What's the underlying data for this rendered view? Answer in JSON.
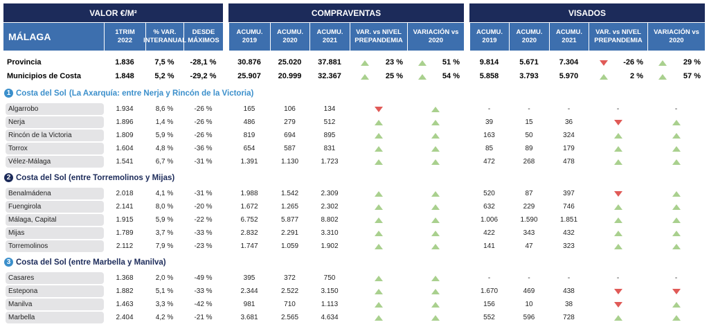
{
  "header": {
    "groups": [
      "VALOR €/M²",
      "COMPRAVENTAS",
      "VISADOS"
    ],
    "region": "MÁLAGA",
    "columns": [
      "1TRIM\n2022",
      "% VAR.\nINTERANUAL",
      "DESDE\nMÁXIMOS",
      "ACUMU.\n2019",
      "ACUMU.\n2020",
      "ACUMU.\n2021",
      "VAR. vs NIVEL\nPREPANDEMIA",
      "VARIACIÓN vs\n2020",
      "ACUMU.\n2019",
      "ACUMU.\n2020",
      "ACUMU.\n2021",
      "VAR. vs NIVEL\nPREPANDEMIA",
      "VARIACIÓN vs\n2020"
    ]
  },
  "summary": [
    {
      "name": "Provincia",
      "valor": [
        "1.836",
        "7,5 %",
        "-28,1 %"
      ],
      "compraventas": [
        "30.876",
        "25.020",
        "37.881"
      ],
      "compraventas_var": [
        {
          "dir": "up",
          "text": "23 %"
        },
        {
          "dir": "up",
          "text": "51 %"
        }
      ],
      "visados": [
        "9.814",
        "5.671",
        "7.304"
      ],
      "visados_var": [
        {
          "dir": "down",
          "text": "-26 %"
        },
        {
          "dir": "up",
          "text": "29 %"
        }
      ]
    },
    {
      "name": "Municipios de Costa",
      "valor": [
        "1.848",
        "5,2 %",
        "-29,2 %"
      ],
      "compraventas": [
        "25.907",
        "20.999",
        "32.367"
      ],
      "compraventas_var": [
        {
          "dir": "up",
          "text": "25 %"
        },
        {
          "dir": "up",
          "text": "54 %"
        }
      ],
      "visados": [
        "5.858",
        "3.793",
        "5.970"
      ],
      "visados_var": [
        {
          "dir": "up",
          "text": "2 %"
        },
        {
          "dir": "up",
          "text": "57 %"
        }
      ]
    }
  ],
  "sections": [
    {
      "number": "1",
      "title": "Costa del Sol",
      "subtitle": "(La Axarquía: entre Nerja y Rincón de la Victoria)",
      "color": "#3b8fcb",
      "rows": [
        {
          "name": "Algarrobo",
          "valor": [
            "1.934",
            "8,6 %",
            "-26 %"
          ],
          "compraventas": [
            "165",
            "106",
            "134"
          ],
          "compraventas_var": [
            {
              "dir": "down"
            },
            {
              "dir": "up"
            }
          ],
          "visados": [
            "-",
            "-",
            "-"
          ],
          "visados_var": [
            {
              "text": "-"
            },
            {
              "text": "-"
            }
          ]
        },
        {
          "name": "Nerja",
          "valor": [
            "1.896",
            "1,4 %",
            "-26 %"
          ],
          "compraventas": [
            "486",
            "279",
            "512"
          ],
          "compraventas_var": [
            {
              "dir": "up"
            },
            {
              "dir": "up"
            }
          ],
          "visados": [
            "39",
            "15",
            "36"
          ],
          "visados_var": [
            {
              "dir": "down"
            },
            {
              "dir": "up"
            }
          ]
        },
        {
          "name": "Rincón de la Victoria",
          "valor": [
            "1.809",
            "5,9 %",
            "-26 %"
          ],
          "compraventas": [
            "819",
            "694",
            "895"
          ],
          "compraventas_var": [
            {
              "dir": "up"
            },
            {
              "dir": "up"
            }
          ],
          "visados": [
            "163",
            "50",
            "324"
          ],
          "visados_var": [
            {
              "dir": "up"
            },
            {
              "dir": "up"
            }
          ]
        },
        {
          "name": "Torrox",
          "valor": [
            "1.604",
            "4,8 %",
            "-36 %"
          ],
          "compraventas": [
            "654",
            "587",
            "831"
          ],
          "compraventas_var": [
            {
              "dir": "up"
            },
            {
              "dir": "up"
            }
          ],
          "visados": [
            "85",
            "89",
            "179"
          ],
          "visados_var": [
            {
              "dir": "up"
            },
            {
              "dir": "up"
            }
          ]
        },
        {
          "name": "Vélez-Málaga",
          "valor": [
            "1.541",
            "6,7 %",
            "-31 %"
          ],
          "compraventas": [
            "1.391",
            "1.130",
            "1.723"
          ],
          "compraventas_var": [
            {
              "dir": "up"
            },
            {
              "dir": "up"
            }
          ],
          "visados": [
            "472",
            "268",
            "478"
          ],
          "visados_var": [
            {
              "dir": "up"
            },
            {
              "dir": "up"
            }
          ]
        }
      ]
    },
    {
      "number": "2",
      "title": "Costa del Sol (entre Torremolinos y Mijas)",
      "color": "#1c2b5a",
      "rows": [
        {
          "name": "Benalmádena",
          "valor": [
            "2.018",
            "4,1 %",
            "-31 %"
          ],
          "compraventas": [
            "1.988",
            "1.542",
            "2.309"
          ],
          "compraventas_var": [
            {
              "dir": "up"
            },
            {
              "dir": "up"
            }
          ],
          "visados": [
            "520",
            "87",
            "397"
          ],
          "visados_var": [
            {
              "dir": "down"
            },
            {
              "dir": "up"
            }
          ]
        },
        {
          "name": "Fuengirola",
          "valor": [
            "2.141",
            "8,0 %",
            "-20 %"
          ],
          "compraventas": [
            "1.672",
            "1.265",
            "2.302"
          ],
          "compraventas_var": [
            {
              "dir": "up"
            },
            {
              "dir": "up"
            }
          ],
          "visados": [
            "632",
            "229",
            "746"
          ],
          "visados_var": [
            {
              "dir": "up"
            },
            {
              "dir": "up"
            }
          ]
        },
        {
          "name": "Málaga, Capital",
          "valor": [
            "1.915",
            "5,9 %",
            "-22 %"
          ],
          "compraventas": [
            "6.752",
            "5.877",
            "8.802"
          ],
          "compraventas_var": [
            {
              "dir": "up"
            },
            {
              "dir": "up"
            }
          ],
          "visados": [
            "1.006",
            "1.590",
            "1.851"
          ],
          "visados_var": [
            {
              "dir": "up"
            },
            {
              "dir": "up"
            }
          ]
        },
        {
          "name": "Mijas",
          "valor": [
            "1.789",
            "3,7 %",
            "-33 %"
          ],
          "compraventas": [
            "2.832",
            "2.291",
            "3.310"
          ],
          "compraventas_var": [
            {
              "dir": "up"
            },
            {
              "dir": "up"
            }
          ],
          "visados": [
            "422",
            "343",
            "432"
          ],
          "visados_var": [
            {
              "dir": "up"
            },
            {
              "dir": "up"
            }
          ]
        },
        {
          "name": "Torremolinos",
          "valor": [
            "2.112",
            "7,9 %",
            "-23 %"
          ],
          "compraventas": [
            "1.747",
            "1.059",
            "1.902"
          ],
          "compraventas_var": [
            {
              "dir": "up"
            },
            {
              "dir": "up"
            }
          ],
          "visados": [
            "141",
            "47",
            "323"
          ],
          "visados_var": [
            {
              "dir": "up"
            },
            {
              "dir": "up"
            }
          ]
        }
      ]
    },
    {
      "number": "3",
      "title": "Costa del Sol (entre Marbella y Manilva)",
      "color": "#3b8fcb",
      "rows": [
        {
          "name": "Casares",
          "valor": [
            "1.368",
            "2,0 %",
            "-49 %"
          ],
          "compraventas": [
            "395",
            "372",
            "750"
          ],
          "compraventas_var": [
            {
              "dir": "up"
            },
            {
              "dir": "up"
            }
          ],
          "visados": [
            "-",
            "-",
            "-"
          ],
          "visados_var": [
            {
              "text": "-"
            },
            {
              "text": "-"
            }
          ]
        },
        {
          "name": "Estepona",
          "valor": [
            "1.882",
            "5,1 %",
            "-33 %"
          ],
          "compraventas": [
            "2.344",
            "2.522",
            "3.150"
          ],
          "compraventas_var": [
            {
              "dir": "up"
            },
            {
              "dir": "up"
            }
          ],
          "visados": [
            "1.670",
            "469",
            "438"
          ],
          "visados_var": [
            {
              "dir": "down"
            },
            {
              "dir": "down"
            }
          ]
        },
        {
          "name": "Manilva",
          "valor": [
            "1.463",
            "3,3 %",
            "-42 %"
          ],
          "compraventas": [
            "981",
            "710",
            "1.113"
          ],
          "compraventas_var": [
            {
              "dir": "up"
            },
            {
              "dir": "up"
            }
          ],
          "visados": [
            "156",
            "10",
            "38"
          ],
          "visados_var": [
            {
              "dir": "down"
            },
            {
              "dir": "up"
            }
          ]
        },
        {
          "name": "Marbella",
          "valor": [
            "2.404",
            "4,2 %",
            "-21 %"
          ],
          "compraventas": [
            "3.681",
            "2.565",
            "4.634"
          ],
          "compraventas_var": [
            {
              "dir": "up"
            },
            {
              "dir": "up"
            }
          ],
          "visados": [
            "552",
            "596",
            "728"
          ],
          "visados_var": [
            {
              "dir": "up"
            },
            {
              "dir": "up"
            }
          ]
        }
      ]
    }
  ]
}
